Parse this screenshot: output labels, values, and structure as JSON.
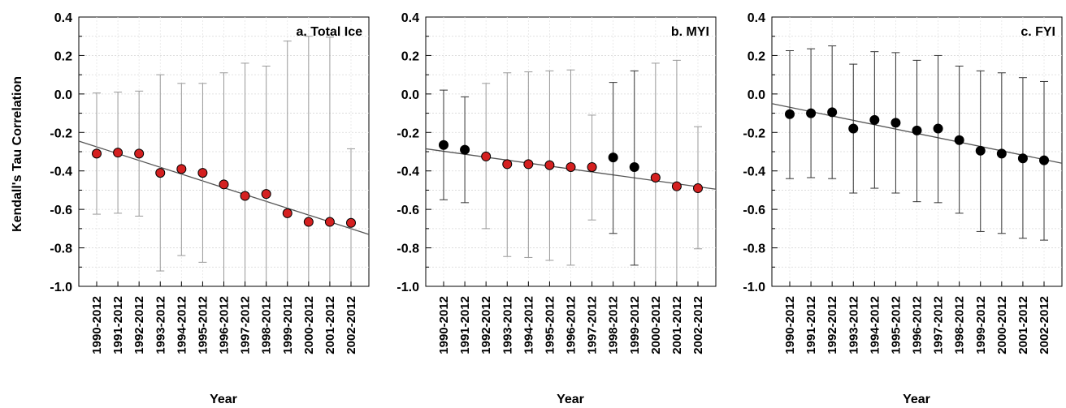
{
  "chart_data": [
    {
      "type": "scatter",
      "title": "a. Total Ice",
      "xlabel": "Year",
      "ylabel": "Kendall's Tau Correlation",
      "ylim": [
        -1.0,
        0.4
      ],
      "yticks": [
        "0.4",
        "0.2",
        "0.0",
        "-0.2",
        "-0.4",
        "-0.6",
        "-0.8",
        "-1.0"
      ],
      "grid": true,
      "categories": [
        "1990-2012",
        "1991-2012",
        "1992-2012",
        "1993-2012",
        "1994-2012",
        "1995-2012",
        "1996-2012",
        "1997-2012",
        "1998-2012",
        "1999-2012",
        "2000-2012",
        "2001-2012",
        "2002-2012"
      ],
      "values": [
        -0.31,
        -0.305,
        -0.31,
        -0.41,
        -0.39,
        -0.41,
        -0.47,
        -0.53,
        -0.52,
        -0.62,
        -0.665,
        -0.665,
        -0.67
      ],
      "err_lower": [
        -0.625,
        -0.62,
        -0.635,
        -0.92,
        -0.84,
        -0.875,
        -1.0,
        -1.0,
        -1.0,
        -1.0,
        -1.0,
        -1.0,
        -1.0
      ],
      "err_upper": [
        0.005,
        0.01,
        0.015,
        0.1,
        0.055,
        0.055,
        0.11,
        0.16,
        0.145,
        0.275,
        0.3,
        0.295,
        -0.285
      ],
      "point_colors": [
        "#d42020",
        "#d42020",
        "#d42020",
        "#d42020",
        "#d42020",
        "#d42020",
        "#d42020",
        "#d42020",
        "#d42020",
        "#d42020",
        "#d42020",
        "#d42020",
        "#d42020"
      ],
      "trendline": [
        -0.245,
        -0.73
      ]
    },
    {
      "type": "scatter",
      "title": "b. MYI",
      "xlabel": "Year",
      "ylabel": "",
      "ylim": [
        -1.0,
        0.4
      ],
      "yticks": [
        "0.4",
        "0.2",
        "0.0",
        "-0.2",
        "-0.4",
        "-0.6",
        "-0.8",
        "-1.0"
      ],
      "grid": true,
      "categories": [
        "1990-2012",
        "1991-2012",
        "1992-2012",
        "1993-2012",
        "1994-2012",
        "1995-2012",
        "1996-2012",
        "1997-2012",
        "1998-2012",
        "1999-2012",
        "2000-2012",
        "2001-2012",
        "2002-2012"
      ],
      "values": [
        -0.265,
        -0.29,
        -0.325,
        -0.365,
        -0.365,
        -0.37,
        -0.38,
        -0.38,
        -0.33,
        -0.38,
        -0.435,
        -0.48,
        -0.49
      ],
      "err_lower": [
        -0.55,
        -0.565,
        -0.7,
        -0.845,
        -0.85,
        -0.865,
        -0.89,
        -0.655,
        -0.725,
        -0.89,
        -1.0,
        -1.0,
        -0.805
      ],
      "err_upper": [
        0.02,
        -0.015,
        0.055,
        0.11,
        0.115,
        0.12,
        0.125,
        -0.11,
        0.06,
        0.12,
        0.16,
        0.175,
        -0.17
      ],
      "point_colors": [
        "#000000",
        "#000000",
        "#d42020",
        "#d42020",
        "#d42020",
        "#d42020",
        "#d42020",
        "#d42020",
        "#000000",
        "#000000",
        "#d42020",
        "#d42020",
        "#d42020"
      ],
      "trendline": [
        -0.285,
        -0.495
      ]
    },
    {
      "type": "scatter",
      "title": "c. FYI",
      "xlabel": "Year",
      "ylabel": "",
      "ylim": [
        -1.0,
        0.4
      ],
      "yticks": [
        "0.4",
        "0.2",
        "0.0",
        "-0.2",
        "-0.4",
        "-0.6",
        "-0.8",
        "-1.0"
      ],
      "grid": true,
      "categories": [
        "1990-2012",
        "1991-2012",
        "1992-2012",
        "1993-2012",
        "1994-2012",
        "1995-2012",
        "1996-2012",
        "1997-2012",
        "1998-2012",
        "1999-2012",
        "2000-2012",
        "2001-2012",
        "2002-2012"
      ],
      "values": [
        -0.105,
        -0.1,
        -0.095,
        -0.18,
        -0.135,
        -0.15,
        -0.19,
        -0.18,
        -0.24,
        -0.295,
        -0.31,
        -0.335,
        -0.345
      ],
      "err_lower": [
        -0.44,
        -0.435,
        -0.44,
        -0.515,
        -0.49,
        -0.515,
        -0.56,
        -0.565,
        -0.62,
        -0.715,
        -0.725,
        -0.75,
        -0.76
      ],
      "err_upper": [
        0.225,
        0.235,
        0.25,
        0.155,
        0.22,
        0.215,
        0.175,
        0.2,
        0.145,
        0.12,
        0.11,
        0.085,
        0.065
      ],
      "point_colors": [
        "#000000",
        "#000000",
        "#000000",
        "#000000",
        "#000000",
        "#000000",
        "#000000",
        "#000000",
        "#000000",
        "#000000",
        "#000000",
        "#000000",
        "#000000"
      ],
      "trendline": [
        -0.05,
        -0.36
      ]
    }
  ]
}
